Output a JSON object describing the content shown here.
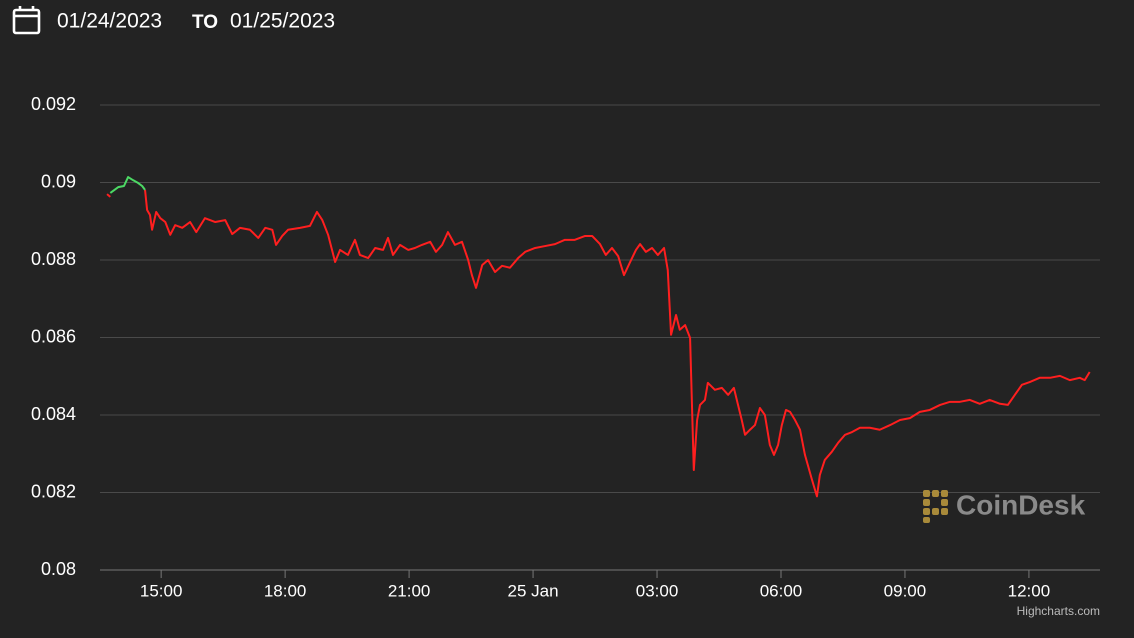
{
  "chart_data": {
    "type": "line",
    "date_range": {
      "from": "01/24/2023",
      "separator": "TO",
      "to": "01/25/2023"
    },
    "watermark": "CoinDesk",
    "credits": "Highcharts.com",
    "xlim": [
      13.52,
      37.72
    ],
    "xticks": [
      {
        "value": 15,
        "label": "15:00"
      },
      {
        "value": 18,
        "label": "18:00"
      },
      {
        "value": 21,
        "label": "21:00"
      },
      {
        "value": 24,
        "label": "25 Jan"
      },
      {
        "value": 27,
        "label": "03:00"
      },
      {
        "value": 30,
        "label": "06:00"
      },
      {
        "value": 33,
        "label": "09:00"
      },
      {
        "value": 36,
        "label": "12:00"
      }
    ],
    "ylim": [
      0.08,
      0.092
    ],
    "yticks": [
      0.08,
      0.082,
      0.084,
      0.086,
      0.088,
      0.09,
      0.092
    ],
    "grid": true,
    "series": [
      {
        "color": "#ff1f1f",
        "x": [
          13.69,
          13.77,
          14.2,
          14.61,
          14.66,
          14.73,
          14.78,
          14.88,
          14.98,
          15.1,
          15.22,
          15.34,
          15.51,
          15.7,
          15.85,
          16.06,
          16.31,
          16.55,
          16.72,
          16.91,
          17.15,
          17.35,
          17.52,
          17.69,
          17.78,
          17.93,
          18.07,
          18.36,
          18.6,
          18.77,
          18.9,
          19.04,
          19.21,
          19.33,
          19.52,
          19.69,
          19.81,
          20.01,
          20.18,
          20.37,
          20.49,
          20.61,
          20.78,
          20.98,
          21.14,
          21.31,
          21.51,
          21.65,
          21.8,
          21.94,
          22.11,
          22.28,
          22.43,
          22.52,
          22.62,
          22.77,
          22.91,
          23.08,
          23.25,
          23.44,
          23.64,
          23.81,
          24.05,
          24.29,
          24.53,
          24.77,
          25.01,
          25.26,
          25.43,
          25.62,
          25.76,
          25.91,
          26.06,
          26.2,
          26.35,
          26.49,
          26.59,
          26.73,
          26.88,
          27.02,
          27.17,
          27.26,
          27.34,
          27.46,
          27.55,
          27.68,
          27.8,
          27.89,
          27.97,
          28.04,
          28.16,
          28.23,
          28.4,
          28.57,
          28.72,
          28.86,
          28.96,
          29.05,
          29.13,
          29.25,
          29.37,
          29.49,
          29.61,
          29.73,
          29.83,
          29.93,
          30.02,
          30.12,
          30.22,
          30.34,
          30.46,
          30.58,
          30.75,
          30.87,
          30.94,
          31.06,
          31.23,
          31.38,
          31.55,
          31.72,
          31.91,
          32.15,
          32.39,
          32.64,
          32.88,
          33.12,
          33.36,
          33.6,
          33.85,
          34.09,
          34.33,
          34.57,
          34.81,
          35.05,
          35.3,
          35.49,
          35.66,
          35.83,
          36.02,
          36.26,
          36.51,
          36.75,
          36.99,
          37.23,
          37.35,
          37.47
        ],
        "values": [
          0.0897,
          0.08963,
          null,
          0.08981,
          0.08929,
          0.08916,
          0.08878,
          0.08924,
          0.08908,
          0.08898,
          0.08865,
          0.0889,
          0.08883,
          0.08898,
          0.08872,
          0.08908,
          0.08898,
          0.08903,
          0.08867,
          0.08883,
          0.08878,
          0.08857,
          0.08883,
          0.08878,
          0.08839,
          0.08862,
          0.08878,
          0.08883,
          0.08888,
          0.08924,
          0.08903,
          0.08865,
          0.08795,
          0.08826,
          0.08813,
          0.08852,
          0.08813,
          0.08805,
          0.08831,
          0.08826,
          0.08857,
          0.08813,
          0.08839,
          0.08826,
          0.08831,
          0.08839,
          0.08847,
          0.08821,
          0.08839,
          0.08872,
          0.08839,
          0.08847,
          0.088,
          0.08761,
          0.08728,
          0.08787,
          0.088,
          0.08769,
          0.08785,
          0.0878,
          0.08805,
          0.08821,
          0.08831,
          0.08836,
          0.08841,
          0.08852,
          0.08852,
          0.08862,
          0.08862,
          0.08841,
          0.08813,
          0.08831,
          0.0881,
          0.08761,
          0.08795,
          0.08826,
          0.08841,
          0.08821,
          0.08831,
          0.08813,
          0.08831,
          0.08774,
          0.08607,
          0.08658,
          0.0862,
          0.08632,
          0.08599,
          0.08258,
          0.08387,
          0.08426,
          0.08439,
          0.08483,
          0.08465,
          0.0847,
          0.08452,
          0.0847,
          0.08426,
          0.08387,
          0.08349,
          0.08362,
          0.08374,
          0.08418,
          0.084,
          0.08323,
          0.08297,
          0.08323,
          0.08374,
          0.08413,
          0.08408,
          0.08387,
          0.08362,
          0.08297,
          0.08233,
          0.0819,
          0.08245,
          0.08284,
          0.08305,
          0.08328,
          0.08349,
          0.08356,
          0.08367,
          0.08367,
          0.08362,
          0.08374,
          0.08387,
          0.08392,
          0.08408,
          0.08413,
          0.08426,
          0.08434,
          0.08434,
          0.08439,
          0.08429,
          0.08439,
          0.08429,
          0.08426,
          0.08452,
          0.08478,
          0.08485,
          0.08496,
          0.08496,
          0.08501,
          0.0849,
          0.08496,
          0.0849,
          0.08511
        ]
      },
      {
        "color": "#4cd964",
        "x": [
          13.77,
          13.96,
          14.1,
          14.2,
          14.32,
          14.44,
          14.54,
          14.61
        ],
        "values": [
          0.08973,
          0.08988,
          0.08991,
          0.09014,
          0.09006,
          0.08999,
          0.08991,
          0.08981
        ]
      }
    ]
  }
}
